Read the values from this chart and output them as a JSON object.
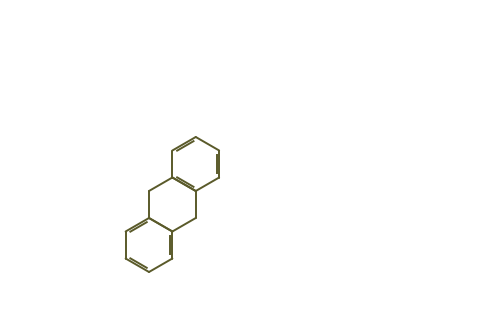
{
  "bg_color": "#ffffff",
  "line_color": "#5a5a2a",
  "text_color": "#5a5a2a",
  "figsize": [
    4.84,
    3.12
  ],
  "dpi": 100
}
